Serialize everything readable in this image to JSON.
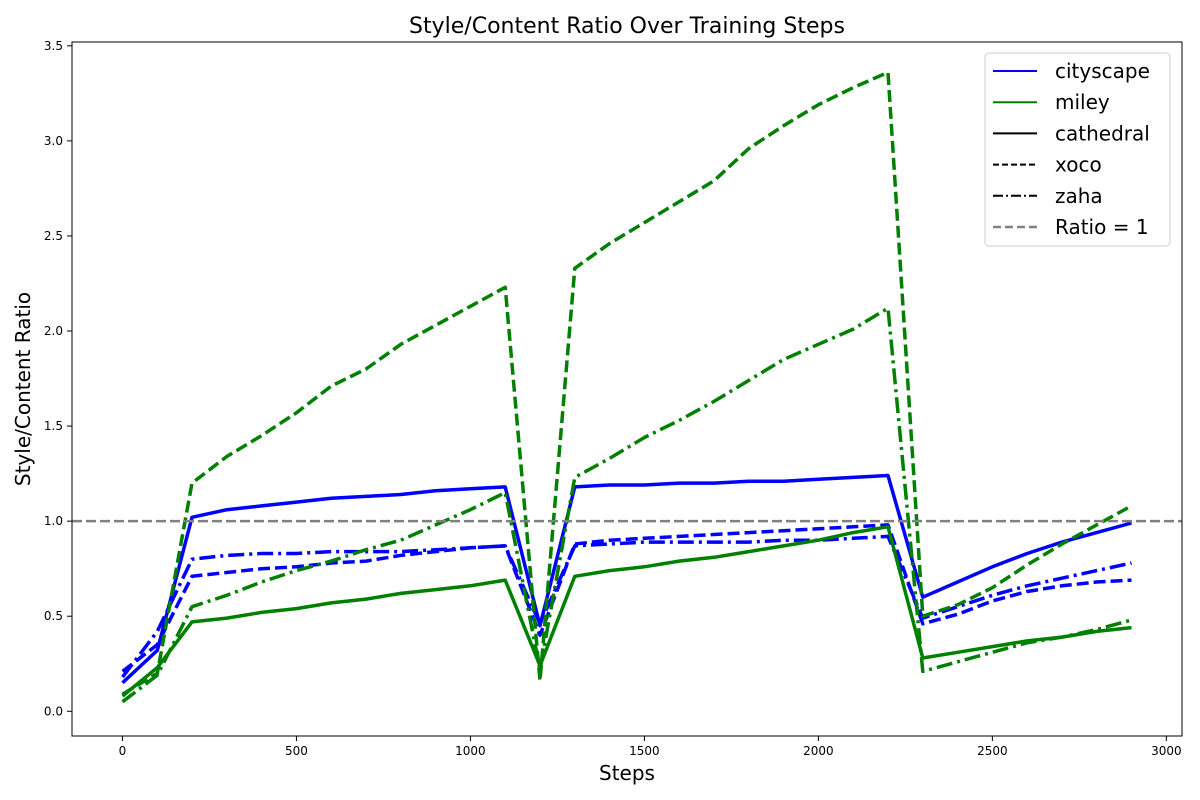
{
  "chart_data": {
    "type": "line",
    "title": "Style/Content Ratio Over Training Steps",
    "xlabel": "Steps",
    "ylabel": "Style/Content Ratio",
    "xlim": [
      -145,
      3045
    ],
    "ylim": [
      -0.13,
      3.52
    ],
    "xticks": [
      0,
      500,
      1000,
      1500,
      2000,
      2500,
      3000
    ],
    "yticks": [
      0.0,
      0.5,
      1.0,
      1.5,
      2.0,
      2.5,
      3.0,
      3.5
    ],
    "xtick_labels": [
      "0",
      "500",
      "1000",
      "1500",
      "2000",
      "2500",
      "3000"
    ],
    "ytick_labels": [
      "0.0",
      "0.5",
      "1.0",
      "1.5",
      "2.0",
      "2.5",
      "3.0",
      "3.5"
    ],
    "grid": false,
    "legend_position": "top-right",
    "colors": {
      "cityscape": "#0000ff",
      "miley": "#008000",
      "reference": "#808080",
      "legend_key": "#000000"
    },
    "legend": [
      {
        "label": "cityscape",
        "color": "#0000ff",
        "style": "solid"
      },
      {
        "label": "miley",
        "color": "#008000",
        "style": "solid"
      },
      {
        "label": "cathedral",
        "color": "#000000",
        "style": "solid"
      },
      {
        "label": "xoco",
        "color": "#000000",
        "style": "dashed"
      },
      {
        "label": "zaha",
        "color": "#000000",
        "style": "dashdot"
      },
      {
        "label": "Ratio = 1",
        "color": "#808080",
        "style": "refdash"
      }
    ],
    "reference_line": {
      "y": 1.0,
      "label": "Ratio = 1"
    },
    "x": [
      0,
      100,
      200,
      300,
      400,
      500,
      600,
      700,
      800,
      900,
      1000,
      1100,
      1200,
      1300,
      1400,
      1500,
      1600,
      1700,
      1800,
      1900,
      2000,
      2100,
      2200,
      2300,
      2400,
      2500,
      2600,
      2700,
      2800,
      2900
    ],
    "series": [
      {
        "color_key": "cityscape",
        "style_key": "cathedral",
        "values": [
          0.15,
          0.32,
          1.02,
          1.06,
          1.08,
          1.1,
          1.12,
          1.13,
          1.14,
          1.16,
          1.17,
          1.18,
          0.45,
          1.18,
          1.19,
          1.19,
          1.2,
          1.2,
          1.21,
          1.21,
          1.22,
          1.23,
          1.24,
          0.6,
          0.68,
          0.76,
          0.83,
          0.89,
          0.94,
          0.99
        ]
      },
      {
        "color_key": "cityscape",
        "style_key": "xoco",
        "values": [
          0.21,
          0.35,
          0.71,
          0.73,
          0.75,
          0.76,
          0.78,
          0.79,
          0.82,
          0.84,
          0.86,
          0.87,
          0.4,
          0.88,
          0.9,
          0.91,
          0.92,
          0.93,
          0.94,
          0.95,
          0.96,
          0.97,
          0.98,
          0.46,
          0.51,
          0.58,
          0.63,
          0.66,
          0.68,
          0.69
        ]
      },
      {
        "color_key": "cityscape",
        "style_key": "zaha",
        "values": [
          0.18,
          0.42,
          0.8,
          0.82,
          0.83,
          0.83,
          0.84,
          0.84,
          0.84,
          0.85,
          0.86,
          0.87,
          0.46,
          0.87,
          0.88,
          0.89,
          0.89,
          0.89,
          0.89,
          0.9,
          0.9,
          0.91,
          0.92,
          0.49,
          0.55,
          0.61,
          0.66,
          0.7,
          0.74,
          0.78
        ]
      },
      {
        "color_key": "miley",
        "style_key": "cathedral",
        "values": [
          0.08,
          0.23,
          0.47,
          0.49,
          0.52,
          0.54,
          0.57,
          0.59,
          0.62,
          0.64,
          0.66,
          0.69,
          0.24,
          0.71,
          0.74,
          0.76,
          0.79,
          0.81,
          0.84,
          0.87,
          0.9,
          0.94,
          0.97,
          0.28,
          0.31,
          0.34,
          0.37,
          0.39,
          0.42,
          0.44
        ]
      },
      {
        "color_key": "miley",
        "style_key": "xoco",
        "values": [
          0.09,
          0.2,
          1.2,
          1.34,
          1.45,
          1.57,
          1.71,
          1.8,
          1.93,
          2.03,
          2.13,
          2.23,
          0.16,
          2.33,
          2.46,
          2.57,
          2.68,
          2.79,
          2.96,
          3.08,
          3.19,
          3.28,
          3.36,
          0.5,
          0.56,
          0.65,
          0.77,
          0.88,
          0.98,
          1.08
        ]
      },
      {
        "color_key": "miley",
        "style_key": "zaha",
        "values": [
          0.05,
          0.19,
          0.55,
          0.61,
          0.68,
          0.74,
          0.79,
          0.85,
          0.9,
          0.98,
          1.06,
          1.15,
          0.22,
          1.23,
          1.33,
          1.44,
          1.53,
          1.63,
          1.74,
          1.85,
          1.93,
          2.01,
          2.12,
          0.21,
          0.26,
          0.31,
          0.36,
          0.39,
          0.43,
          0.48
        ]
      }
    ]
  }
}
